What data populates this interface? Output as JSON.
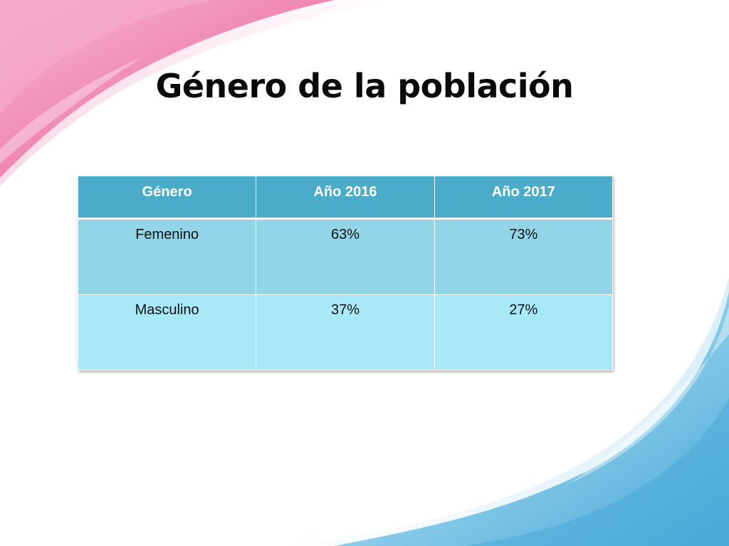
{
  "slide": {
    "title": "Género de la población"
  },
  "table": {
    "headers": [
      "Género",
      "Año 2016",
      "Año 2017"
    ],
    "rows": [
      [
        "Femenino",
        "63%",
        "73%"
      ],
      [
        "Masculino",
        "37%",
        "27%"
      ]
    ]
  },
  "colors": {
    "header_bg": "#4aacc9",
    "row_odd_bg": "#92d5e8",
    "row_even_bg": "#a8e8f7",
    "accent_pink": "#ef7fab",
    "accent_blue": "#5bb4dc"
  }
}
